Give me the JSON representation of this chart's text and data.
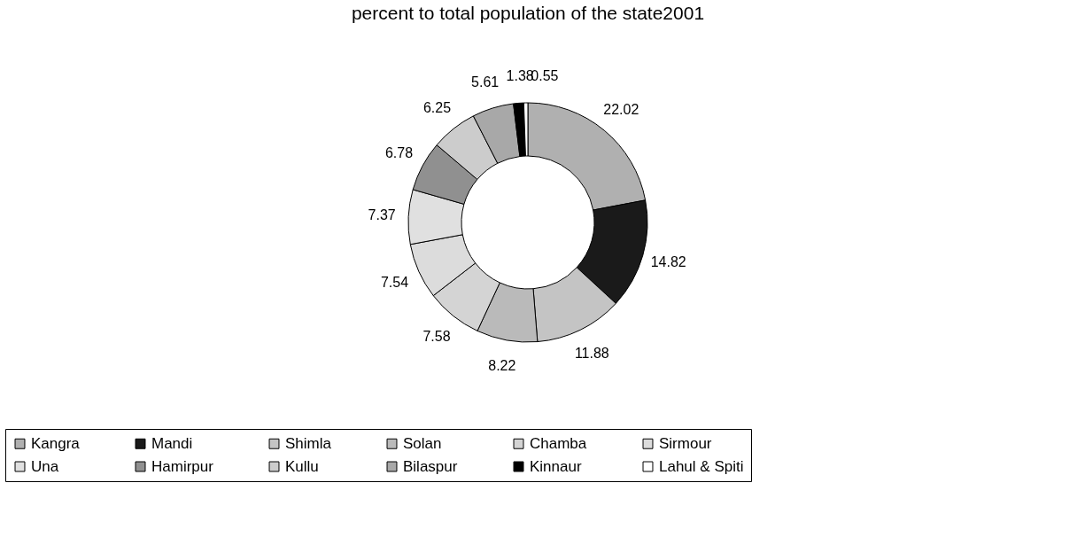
{
  "chart_data": {
    "type": "donut",
    "title": "percent to total population of the state2001",
    "categories": [
      "Kangra",
      "Mandi",
      "Shimla",
      "Solan",
      "Chamba",
      "Sirmour",
      "Una",
      "Hamirpur",
      "Kullu",
      "Bilaspur",
      "Kinnaur",
      "Lahul & Spiti"
    ],
    "values": [
      22.02,
      14.82,
      11.88,
      8.22,
      7.58,
      7.54,
      7.37,
      6.78,
      6.25,
      5.61,
      1.38,
      0.55
    ],
    "colors": [
      "#b0b0b0",
      "#1a1a1a",
      "#c4c4c4",
      "#bababa",
      "#d4d4d4",
      "#dcdcdc",
      "#e0e0e0",
      "#909090",
      "#cccccc",
      "#a8a8a8",
      "#000000",
      "#ffffff"
    ],
    "data_labels": true,
    "legend": "bottom"
  }
}
